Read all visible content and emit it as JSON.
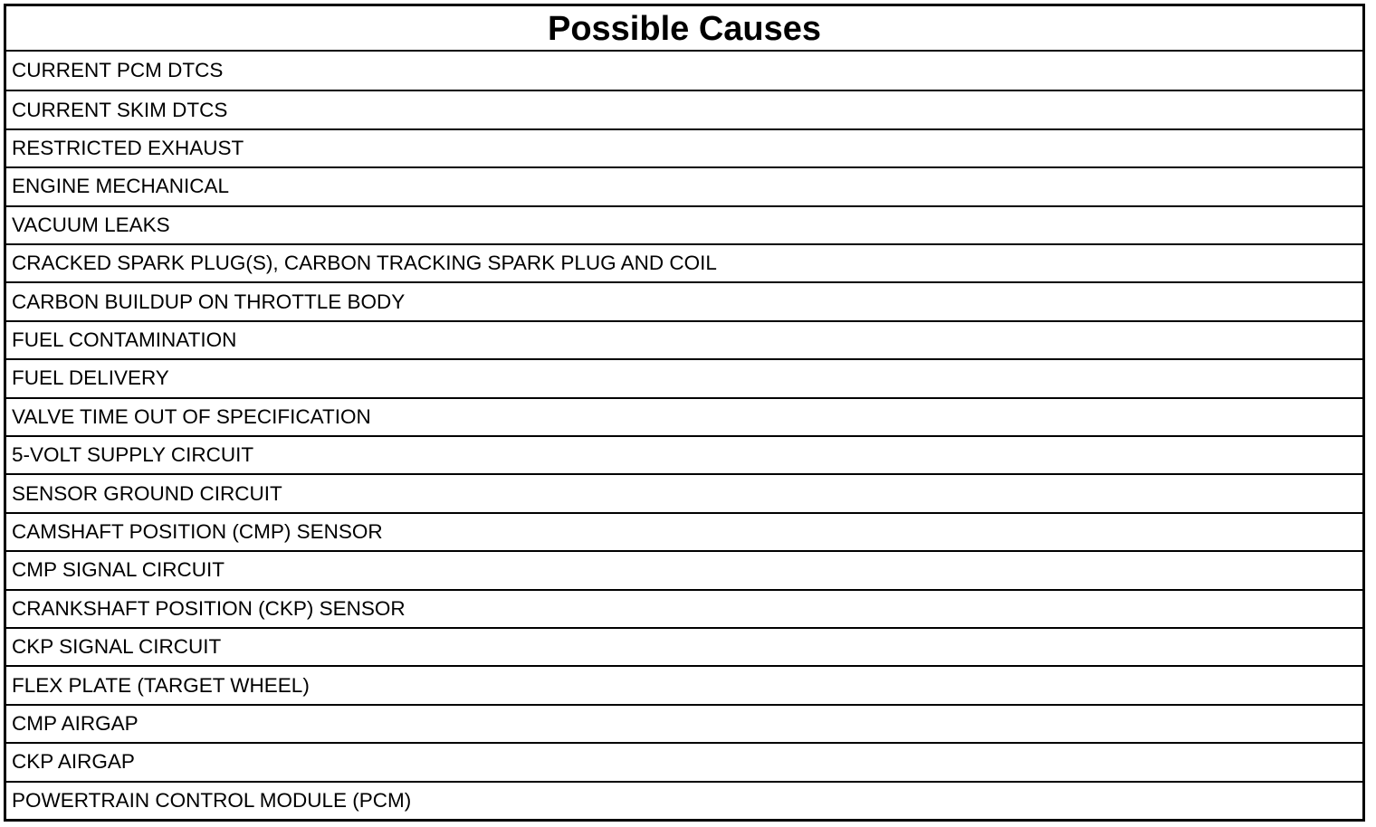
{
  "table": {
    "title": "Possible Causes",
    "rows": [
      "CURRENT PCM DTCS",
      "CURRENT SKIM DTCS",
      "RESTRICTED EXHAUST",
      "ENGINE MECHANICAL",
      "VACUUM LEAKS",
      "CRACKED SPARK PLUG(S), CARBON TRACKING SPARK PLUG AND COIL",
      "CARBON BUILDUP ON THROTTLE BODY",
      "FUEL CONTAMINATION",
      "FUEL DELIVERY",
      "VALVE TIME OUT OF SPECIFICATION",
      "5-VOLT SUPPLY CIRCUIT",
      "SENSOR GROUND CIRCUIT",
      "CAMSHAFT POSITION (CMP) SENSOR",
      "CMP SIGNAL CIRCUIT",
      "CRANKSHAFT POSITION (CKP) SENSOR",
      "CKP SIGNAL CIRCUIT",
      "FLEX PLATE (TARGET WHEEL)",
      "CMP AIRGAP",
      "CKP AIRGAP",
      "POWERTRAIN CONTROL MODULE (PCM)"
    ]
  }
}
